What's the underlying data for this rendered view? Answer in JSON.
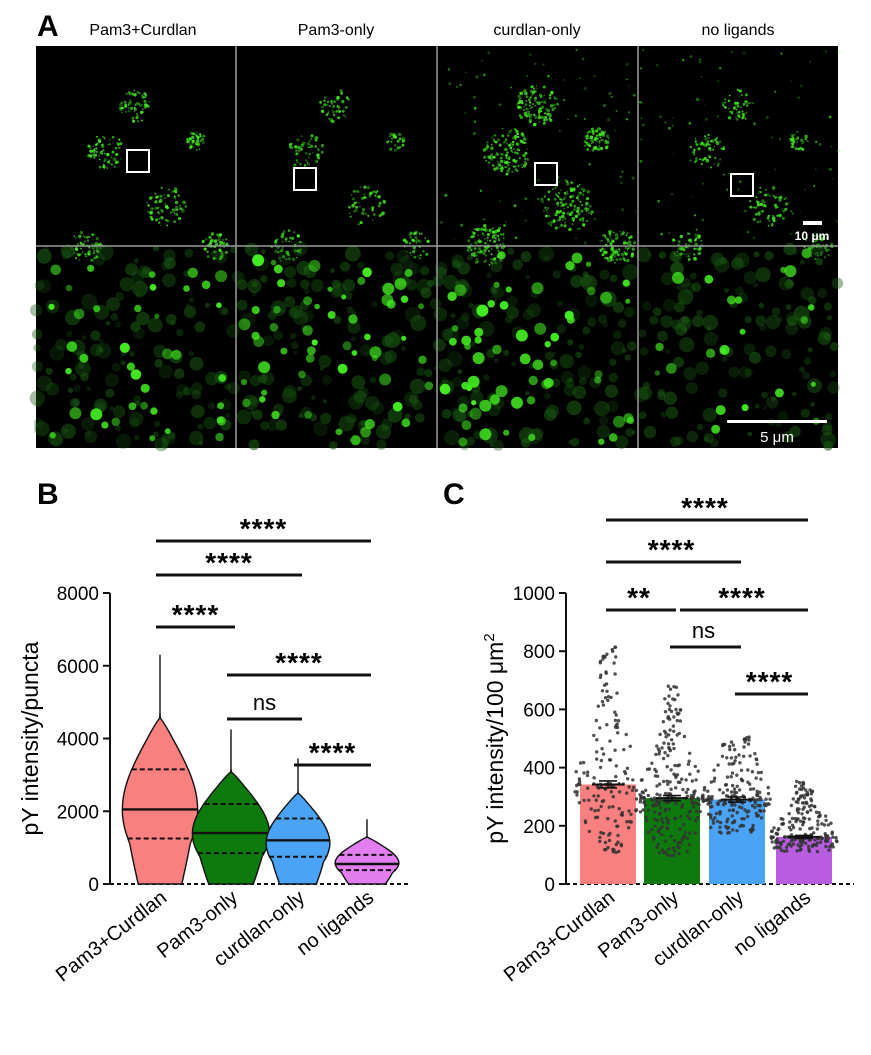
{
  "panel_a": {
    "letter": "A",
    "columns": [
      "Pam3+Curdlan",
      "Pam3-only",
      "curdlan-only",
      "no ligands"
    ],
    "scale_bar_top": "10 μm",
    "scale_bar_bottom": "5 μm",
    "puncta_color": "#44ee22"
  },
  "chart_data": [
    {
      "panel": "B",
      "type": "violin",
      "categories": [
        "Pam3+Curdlan",
        "Pam3-only",
        "curdlan-only",
        "no ligands"
      ],
      "ylabel": "pY intensity/puncta",
      "ylim": [
        0,
        8000
      ],
      "yticks": [
        0,
        2000,
        4000,
        6000,
        8000
      ],
      "colors": [
        "#f98080",
        "#0e7a0e",
        "#4aa3f5",
        "#e27ef0"
      ],
      "series": [
        {
          "max": 6300,
          "q3": 3150,
          "median": 2050,
          "q1": 1250
        },
        {
          "max": 4250,
          "q3": 2200,
          "median": 1400,
          "q1": 850
        },
        {
          "max": 3450,
          "q3": 1800,
          "median": 1200,
          "q1": 750
        },
        {
          "max": 1780,
          "q3": 800,
          "median": 550,
          "q1": 380
        }
      ],
      "comparisons": [
        {
          "from": 0,
          "to": 3,
          "label": "****"
        },
        {
          "from": 0,
          "to": 2,
          "label": "****"
        },
        {
          "from": 0,
          "to": 1,
          "label": "****"
        },
        {
          "from": 1,
          "to": 3,
          "label": "****"
        },
        {
          "from": 1,
          "to": 2,
          "label": "ns"
        },
        {
          "from": 2,
          "to": 3,
          "label": "****"
        }
      ]
    },
    {
      "panel": "C",
      "type": "bar",
      "categories": [
        "Pam3+Curdlan",
        "Pam3-only",
        "curdlan-only",
        "no ligands"
      ],
      "ylabel": "pY intensity/100 μm",
      "ylabel_sup": "2",
      "ylim": [
        0,
        1000
      ],
      "yticks": [
        0,
        200,
        400,
        600,
        800,
        1000
      ],
      "colors": [
        "#f98080",
        "#0e7a0e",
        "#4aa3f5",
        "#b85ce0"
      ],
      "values": [
        342,
        295,
        290,
        162
      ],
      "sem": [
        12,
        9,
        9,
        5
      ],
      "point_max": [
        830,
        680,
        510,
        355
      ],
      "point_min": [
        100,
        95,
        175,
        110
      ],
      "comparisons": [
        {
          "from": 0,
          "to": 3,
          "label": "****"
        },
        {
          "from": 0,
          "to": 2,
          "label": "****"
        },
        {
          "from": 0,
          "to": 1,
          "label": "**"
        },
        {
          "from": 1,
          "to": 3,
          "label": "****"
        },
        {
          "from": 1,
          "to": 2,
          "label": "ns"
        },
        {
          "from": 2,
          "to": 3,
          "label": "****"
        }
      ]
    }
  ]
}
